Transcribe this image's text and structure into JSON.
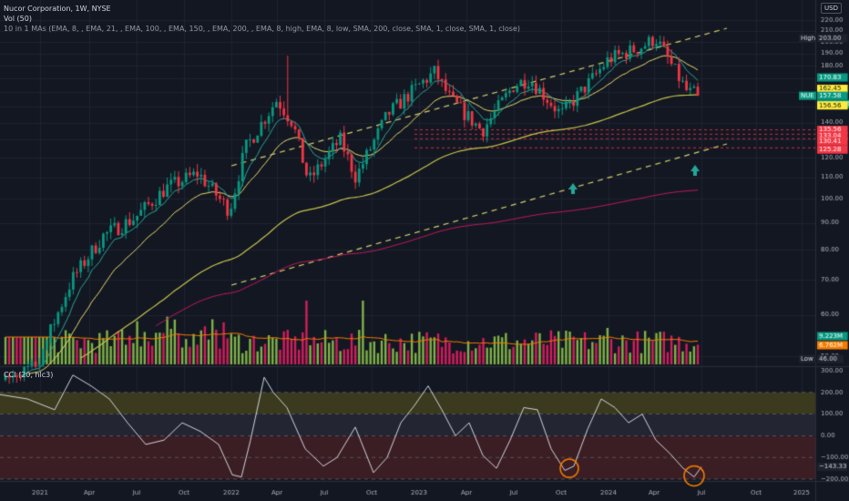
{
  "header": {
    "title": "Nucor Corporation, 1W, NYSE",
    "vol": "Vol (50)",
    "indicator": "10 in 1 MAs (EMA, 8, , EMA, 21, , EMA, 100, , EMA, 150, , EMA, 200, , EMA, 8, high, EMA, 8, low, SMA, 200, close, SMA, 1, close, SMA, 1, close)"
  },
  "currency": "USD",
  "cci_panel": {
    "title": "CCI (20, hlc3)",
    "value_label": "−143.33",
    "value": -143.33,
    "axis_ticks": [
      "300.00",
      "200.00",
      "100.00",
      "0.00",
      "−100.00",
      "−200.00"
    ]
  },
  "price_axis": {
    "ticks": [
      "220.00",
      "210.00",
      "200.00",
      "190.00",
      "180.00",
      "170.00",
      "160.00",
      "150.00",
      "140.00",
      "130.00",
      "120.00",
      "110.00",
      "100.00",
      "90.00",
      "80.00",
      "70.00",
      "60.00",
      "50.00"
    ]
  },
  "price_labels": [
    {
      "label": "High",
      "value": "203.00",
      "color": "#1e222d",
      "text": "#d1d4dc"
    },
    {
      "label": "",
      "value": "170.83",
      "color": "#089981",
      "text": "#ffffff"
    },
    {
      "label": "",
      "value": "162.45",
      "color": "#ffeb3b",
      "text": "#131722"
    },
    {
      "label": "NUE",
      "value": "157.58",
      "color": "#089981",
      "text": "#ffffff"
    },
    {
      "label": "",
      "value": "+218.02%",
      "color": "#089981",
      "text": "#ffffff"
    },
    {
      "label": "",
      "value": "156.56",
      "color": "#ffeb3b",
      "text": "#131722"
    },
    {
      "label": "",
      "value": "135.56",
      "color": "#f23645",
      "text": "#ffffff"
    },
    {
      "label": "",
      "value": "133.04",
      "color": "#f23645",
      "text": "#ffffff"
    },
    {
      "label": "",
      "value": "130.41",
      "color": "#f23645",
      "text": "#ffffff"
    },
    {
      "label": "",
      "value": "125.28",
      "color": "#f23645",
      "text": "#ffffff"
    },
    {
      "label": "",
      "value": "9.223M",
      "color": "#089981",
      "text": "#ffffff"
    },
    {
      "label": "",
      "value": "6.762M",
      "color": "#f57c00",
      "text": "#ffffff"
    },
    {
      "label": "Low",
      "value": "46.00",
      "color": "#1e222d",
      "text": "#d1d4dc"
    }
  ],
  "time_axis": [
    "2021",
    "Apr",
    "Jul",
    "Oct",
    "2022",
    "Apr",
    "Jul",
    "Oct",
    "2023",
    "Apr",
    "Jul",
    "Oct",
    "2024",
    "Apr",
    "Jul",
    "Oct",
    "2025"
  ],
  "colors": {
    "background": "#131722",
    "up": "#089981",
    "down": "#f23645",
    "upVol": "#8bc34a",
    "downVol": "#e91e63",
    "ema_fast": "#26a69a",
    "ema_mid": "#ffeb3b",
    "ema_slow": "#c2185b",
    "channel": "#d4d06a",
    "cci_line": "#d1d4dc",
    "cci_upper_band": "#3b3a1e",
    "cci_lower_band": "#3b1e24",
    "marker": "#f57c00",
    "arrow": "#26a69a"
  },
  "chart_data": {
    "type": "candlestick",
    "symbol": "NUE",
    "timeframe": "1W",
    "x_range": [
      "2021-01",
      "2025-01"
    ],
    "y_range": [
      46,
      220
    ],
    "y_scale": "log",
    "price_trajectory": [
      [
        "2021-01",
        50
      ],
      [
        "2021-03",
        70
      ],
      [
        "2021-05",
        85
      ],
      [
        "2021-07",
        92
      ],
      [
        "2021-09",
        105
      ],
      [
        "2021-11",
        112
      ],
      [
        "2022-01",
        95
      ],
      [
        "2022-02",
        125
      ],
      [
        "2022-04",
        155
      ],
      [
        "2022-05",
        140
      ],
      [
        "2022-06",
        108
      ],
      [
        "2022-08",
        130
      ],
      [
        "2022-09",
        110
      ],
      [
        "2022-11",
        145
      ],
      [
        "2023-01",
        165
      ],
      [
        "2023-02",
        175
      ],
      [
        "2023-03",
        155
      ],
      [
        "2023-05",
        135
      ],
      [
        "2023-07",
        165
      ],
      [
        "2023-08",
        170
      ],
      [
        "2023-10",
        145
      ],
      [
        "2023-12",
        170
      ],
      [
        "2024-01",
        185
      ],
      [
        "2024-03",
        195
      ],
      [
        "2024-04",
        203
      ],
      [
        "2024-05",
        180
      ],
      [
        "2024-06",
        160
      ],
      [
        "2024-07",
        157.58
      ]
    ],
    "cci_values": {
      "last": -143.33,
      "range": [
        -200,
        300
      ]
    }
  }
}
